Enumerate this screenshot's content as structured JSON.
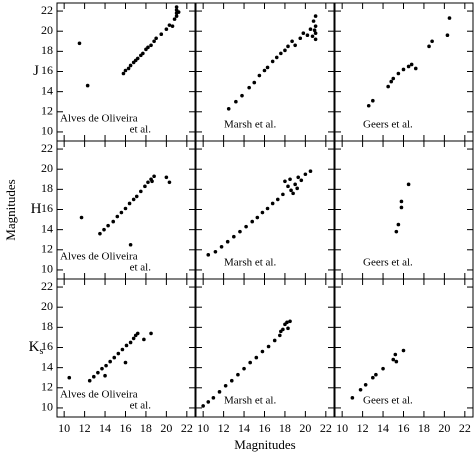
{
  "x_label": "Magnitudes",
  "y_label": "Magnitudes",
  "row_labels": [
    [
      "J"
    ],
    [
      "H"
    ],
    [
      "K",
      "s"
    ]
  ],
  "chart_data": [
    {
      "type": "scatter",
      "label": [
        "Alves de Oliveira",
        "et al."
      ],
      "color": "#000000",
      "x": [
        11.5,
        12.3,
        15.8,
        16,
        16.3,
        16.5,
        16.8,
        17,
        17.2,
        17.5,
        17.7,
        18,
        18.2,
        18.5,
        18.8,
        19,
        19.5,
        20,
        20.3,
        20.6,
        20.8,
        21,
        21,
        21,
        21,
        21.2
      ],
      "values": [
        18.8,
        14.6,
        15.8,
        16.1,
        16.3,
        16.6,
        16.9,
        17.1,
        17.3,
        17.6,
        17.8,
        18.2,
        18.4,
        18.6,
        19,
        19.3,
        19.7,
        20.2,
        20.6,
        20.5,
        21.2,
        21.5,
        21.8,
        22.1,
        22.4,
        21.9
      ],
      "xlim": [
        9.3,
        22.8
      ],
      "ylim": [
        9.1,
        22.8
      ],
      "xticks": [
        10,
        12,
        14,
        16,
        18,
        20,
        22
      ],
      "yticks": [
        10,
        12,
        14,
        16,
        18,
        20,
        22
      ]
    },
    {
      "type": "scatter",
      "label": [
        "Marsh et al."
      ],
      "color": "#000000",
      "x": [
        12.5,
        13.2,
        13.8,
        14.5,
        15,
        15.5,
        16,
        16.3,
        16.8,
        17.2,
        17.6,
        18,
        18.3,
        18.7,
        19,
        19.5,
        19.8,
        20.2,
        20.5,
        20.8,
        21,
        21,
        21,
        21,
        20.9,
        20.7
      ],
      "values": [
        12.3,
        13,
        13.6,
        14.4,
        14.9,
        15.6,
        16.1,
        16.4,
        17,
        17.4,
        17.8,
        18.1,
        18.5,
        19,
        18.6,
        19.3,
        19.8,
        19.6,
        20.2,
        21,
        21.5,
        20.5,
        19.8,
        19.2,
        20.1,
        19.5
      ],
      "xlim": [
        9.3,
        22.8
      ],
      "ylim": [
        9.1,
        22.8
      ],
      "xticks": [
        10,
        12,
        14,
        16,
        18,
        20,
        22
      ],
      "yticks": [
        10,
        12,
        14,
        16,
        18,
        20,
        22
      ]
    },
    {
      "type": "scatter",
      "label": [
        "Geers et al."
      ],
      "color": "#000000",
      "x": [
        12.6,
        13,
        14.5,
        14.8,
        15,
        15.5,
        16,
        16.5,
        16.8,
        17.2,
        18.5,
        18.8,
        20.5,
        20.3
      ],
      "values": [
        12.6,
        13.1,
        14.5,
        15,
        15.3,
        15.8,
        16.2,
        16.5,
        16.7,
        16.3,
        18.5,
        19,
        21.3,
        19.6
      ],
      "xlim": [
        9.3,
        22.8
      ],
      "ylim": [
        9.1,
        22.8
      ],
      "xticks": [
        10,
        12,
        14,
        16,
        18,
        20,
        22
      ],
      "yticks": [
        10,
        12,
        14,
        16,
        18,
        20,
        22
      ]
    },
    {
      "type": "scatter",
      "label": [
        "Alves de Oliveira",
        "et al."
      ],
      "color": "#000000",
      "x": [
        11.7,
        13.5,
        13.9,
        14.3,
        14.8,
        15.2,
        15.6,
        16,
        16.4,
        16.8,
        17.1,
        17.5,
        17.9,
        18.2,
        18.5,
        18.8,
        18.6,
        16.5,
        20,
        20.3
      ],
      "values": [
        15.2,
        13.6,
        14,
        14.4,
        14.8,
        15.3,
        15.7,
        16.1,
        16.6,
        17,
        17.3,
        17.8,
        18.3,
        18.7,
        19,
        19.3,
        18.8,
        12.5,
        19.2,
        18.7
      ],
      "xlim": [
        9.3,
        22.8
      ],
      "ylim": [
        9.1,
        22.8
      ],
      "xticks": [
        10,
        12,
        14,
        16,
        18,
        20,
        22
      ],
      "yticks": [
        10,
        12,
        14,
        16,
        18,
        20,
        22
      ]
    },
    {
      "type": "scatter",
      "label": [
        "Marsh et al."
      ],
      "color": "#000000",
      "x": [
        10.5,
        11.2,
        11.8,
        12.4,
        13,
        13.6,
        14.2,
        14.8,
        15.3,
        15.8,
        16.3,
        16.8,
        17.3,
        17.8,
        18,
        18.3,
        18.5,
        18.8,
        19,
        19.3,
        19.6,
        20,
        20.5,
        18.6,
        19.2
      ],
      "values": [
        11.5,
        11.8,
        12.3,
        12.8,
        13.3,
        13.8,
        14.3,
        14.8,
        15.2,
        15.7,
        16.1,
        16.6,
        17,
        17.5,
        18.8,
        18.3,
        19,
        17.6,
        18.5,
        19.2,
        18.9,
        19.5,
        19.8,
        17.9,
        18.1
      ],
      "xlim": [
        9.3,
        22.8
      ],
      "ylim": [
        9.1,
        22.8
      ],
      "xticks": [
        10,
        12,
        14,
        16,
        18,
        20,
        22
      ],
      "yticks": [
        10,
        12,
        14,
        16,
        18,
        20,
        22
      ]
    },
    {
      "type": "scatter",
      "label": [
        "Geers et al."
      ],
      "color": "#000000",
      "x": [
        15.3,
        15.5,
        15.8,
        15.8,
        16.5
      ],
      "values": [
        13.8,
        14.5,
        16.2,
        16.8,
        18.5
      ],
      "xlim": [
        9.3,
        22.8
      ],
      "ylim": [
        9.1,
        22.8
      ],
      "xticks": [
        10,
        12,
        14,
        16,
        18,
        20,
        22
      ],
      "yticks": [
        10,
        12,
        14,
        16,
        18,
        20,
        22
      ]
    },
    {
      "type": "scatter",
      "label": [
        "Alves de Oliveira",
        "et al."
      ],
      "color": "#000000",
      "x": [
        10.5,
        12.5,
        12.9,
        13.3,
        13.7,
        14.1,
        14.5,
        14.9,
        15.3,
        15.7,
        16.1,
        16.5,
        16.8,
        17,
        17.2,
        18.5,
        14,
        16,
        17.8
      ],
      "values": [
        13,
        12.7,
        13.1,
        13.5,
        13.9,
        14.2,
        14.6,
        15,
        15.4,
        15.8,
        16.2,
        16.5,
        16.9,
        17.2,
        17.4,
        17.4,
        13.2,
        14.5,
        16.8
      ],
      "xlim": [
        9.3,
        22.8
      ],
      "ylim": [
        9.1,
        22.8
      ],
      "xticks": [
        10,
        12,
        14,
        16,
        18,
        20,
        22
      ],
      "yticks": [
        10,
        12,
        14,
        16,
        18,
        20,
        22
      ]
    },
    {
      "type": "scatter",
      "label": [
        "Marsh et al."
      ],
      "color": "#000000",
      "x": [
        10,
        10.5,
        11,
        11.6,
        12.2,
        12.8,
        13.4,
        14,
        14.6,
        15.2,
        15.8,
        16.4,
        17,
        17.5,
        17.8,
        18,
        18.2,
        18.5,
        17.6,
        18.3
      ],
      "values": [
        10.2,
        10.6,
        11,
        11.6,
        12.2,
        12.7,
        13.3,
        13.9,
        14.5,
        15,
        15.6,
        16.1,
        16.7,
        17.2,
        17.8,
        18.3,
        18.5,
        18.6,
        17.6,
        17.9
      ],
      "xlim": [
        9.3,
        22.8
      ],
      "ylim": [
        9.1,
        22.8
      ],
      "xticks": [
        10,
        12,
        14,
        16,
        18,
        20,
        22
      ],
      "yticks": [
        10,
        12,
        14,
        16,
        18,
        20,
        22
      ]
    },
    {
      "type": "scatter",
      "label": [
        "Geers et al."
      ],
      "color": "#000000",
      "x": [
        11,
        11.8,
        12.3,
        13,
        13.3,
        14,
        15,
        15.2,
        16,
        15.3
      ],
      "values": [
        11,
        11.8,
        12.3,
        13,
        13.3,
        13.9,
        14.8,
        15.3,
        15.7,
        14.6
      ],
      "xlim": [
        9.3,
        22.8
      ],
      "ylim": [
        9.1,
        22.8
      ],
      "xticks": [
        10,
        12,
        14,
        16,
        18,
        20,
        22
      ],
      "yticks": [
        10,
        12,
        14,
        16,
        18,
        20,
        22
      ]
    }
  ]
}
